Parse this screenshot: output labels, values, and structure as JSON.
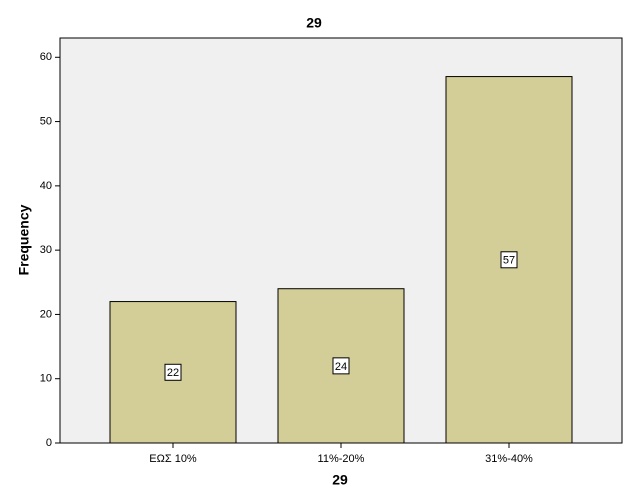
{
  "chart_data": {
    "type": "bar",
    "title": "29",
    "x_label": "29",
    "y_label": "Frequency",
    "categories": [
      "ΕΩΣ 10%",
      "11%-20%",
      "31%-40%"
    ],
    "values": [
      22,
      24,
      57
    ],
    "color": "#d3ce97",
    "ylim": [
      0,
      63
    ],
    "yticks": [
      0,
      10,
      20,
      30,
      40,
      50,
      60
    ],
    "grid": false
  }
}
